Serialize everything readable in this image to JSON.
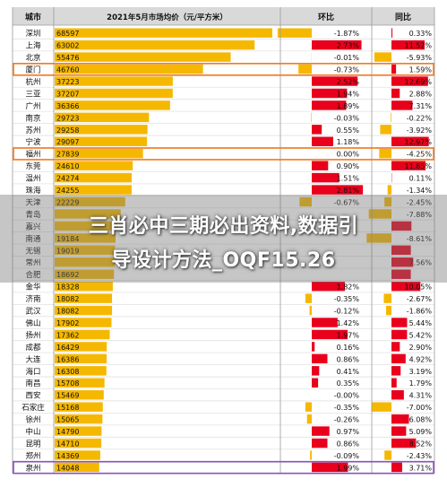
{
  "overlay": {
    "line1": "三肖必中三期必出资料,数据引",
    "line2": "导设计方法_OQF15.26"
  },
  "colors": {
    "bar_price": "#f5b800",
    "bar_positive": "#e8001c",
    "bar_negative": "#f5b800",
    "highlight_orange": "#f07820",
    "highlight_purple": "#8a4fc0",
    "header_bg": "#d9d9d9"
  },
  "chart_data": {
    "type": "table",
    "columns": [
      "城市",
      "2021年5月市场均价（元/平方米）",
      "环比",
      "同比"
    ],
    "ranges": {
      "price": [
        0,
        70000
      ],
      "mom_pct": [
        -3,
        3
      ],
      "yoy_pct": [
        -10,
        14
      ]
    },
    "highlighted_rows": [
      {
        "city": "厦门",
        "color": "orange"
      },
      {
        "city": "福州",
        "color": "orange"
      },
      {
        "city": "泉州",
        "color": "purple"
      }
    ],
    "rows": [
      {
        "city": "深圳",
        "price": 68597,
        "price_label": "68597",
        "mom": -1.87,
        "mom_label": "-1.87%",
        "yoy": 0.33,
        "yoy_label": "0.33%"
      },
      {
        "city": "上海",
        "price": 63002,
        "price_label": "63002",
        "mom": 2.73,
        "mom_label": "2.73%",
        "yoy": 11.52,
        "yoy_label": "11.52%"
      },
      {
        "city": "北京",
        "price": 55476,
        "price_label": "55476",
        "mom": -0.01,
        "mom_label": "-0.01%",
        "yoy": -5.93,
        "yoy_label": "-5.93%"
      },
      {
        "city": "厦门",
        "price": 46760,
        "price_label": "46760",
        "mom": -0.73,
        "mom_label": "-0.73%",
        "yoy": 1.59,
        "yoy_label": "1.59%"
      },
      {
        "city": "杭州",
        "price": 37223,
        "price_label": "37223",
        "mom": 2.52,
        "mom_label": "2.52%",
        "yoy": 12.69,
        "yoy_label": "12.69%"
      },
      {
        "city": "三亚",
        "price": 37207,
        "price_label": "37207",
        "mom": 1.94,
        "mom_label": "1.94%",
        "yoy": 2.88,
        "yoy_label": "2.88%"
      },
      {
        "city": "广州",
        "price": 36366,
        "price_label": "36366",
        "mom": 1.89,
        "mom_label": "1.89%",
        "yoy": 7.31,
        "yoy_label": "7.31%"
      },
      {
        "city": "南京",
        "price": 29723,
        "price_label": "29723",
        "mom": -0.03,
        "mom_label": "-0.03%",
        "yoy": -0.22,
        "yoy_label": "-0.22%"
      },
      {
        "city": "苏州",
        "price": 29258,
        "price_label": "29258",
        "mom": 0.55,
        "mom_label": "0.55%",
        "yoy": -3.92,
        "yoy_label": "-3.92%"
      },
      {
        "city": "宁波",
        "price": 29097,
        "price_label": "29097",
        "mom": 1.18,
        "mom_label": "1.18%",
        "yoy": 12.97,
        "yoy_label": "12.97%"
      },
      {
        "city": "福州",
        "price": 27839,
        "price_label": "27839",
        "mom": 0.0,
        "mom_label": "0.00%",
        "yoy": -4.25,
        "yoy_label": "-4.25%"
      },
      {
        "city": "东莞",
        "price": 24610,
        "price_label": "24610",
        "mom": 0.9,
        "mom_label": "0.90%",
        "yoy": 11.85,
        "yoy_label": "11.85%"
      },
      {
        "city": "温州",
        "price": 24274,
        "price_label": "24274",
        "mom": 1.51,
        "mom_label": "1.51%",
        "yoy": 0.11,
        "yoy_label": "0.11%"
      },
      {
        "city": "珠海",
        "price": 24255,
        "price_label": "24255",
        "mom": 2.81,
        "mom_label": "2.81%",
        "yoy": -1.34,
        "yoy_label": "-1.34%"
      },
      {
        "city": "天津",
        "price": 22229,
        "price_label": "22229",
        "mom": -0.67,
        "mom_label": "-0.67%",
        "yoy": -2.45,
        "yoy_label": "-2.45%"
      },
      {
        "city": "青岛",
        "price": 20812,
        "price_label": "",
        "mom": 0.0,
        "mom_label": "",
        "yoy": -7.88,
        "yoy_label": "-7.88%"
      },
      {
        "city": "嘉兴",
        "price": 20000,
        "price_label": "",
        "mom": 0.0,
        "mom_label": "",
        "yoy": 6.94,
        "yoy_label": ""
      },
      {
        "city": "南通",
        "price": 19184,
        "price_label": "19184",
        "mom": 0.0,
        "mom_label": "",
        "yoy": -8.61,
        "yoy_label": "-8.61%"
      },
      {
        "city": "无锡",
        "price": 19019,
        "price_label": "19019",
        "mom": 0.0,
        "mom_label": "",
        "yoy": 6.72,
        "yoy_label": ""
      },
      {
        "city": "常州",
        "price": 18900,
        "price_label": "",
        "mom": 0.0,
        "mom_label": "",
        "yoy": 7.56,
        "yoy_label": "7.56%"
      },
      {
        "city": "合肥",
        "price": 18692,
        "price_label": "18692",
        "mom": 0.0,
        "mom_label": "",
        "yoy": 6.71,
        "yoy_label": ""
      },
      {
        "city": "金华",
        "price": 18328,
        "price_label": "18328",
        "mom": 1.82,
        "mom_label": "1.82%",
        "yoy": 10.05,
        "yoy_label": "10.05%"
      },
      {
        "city": "济南",
        "price": 18082,
        "price_label": "18082",
        "mom": -0.35,
        "mom_label": "-0.35%",
        "yoy": -2.67,
        "yoy_label": "-2.67%"
      },
      {
        "city": "武汉",
        "price": 18082,
        "price_label": "18082",
        "mom": -0.12,
        "mom_label": "-0.12%",
        "yoy": -1.86,
        "yoy_label": "-1.86%"
      },
      {
        "city": "佛山",
        "price": 17902,
        "price_label": "17902",
        "mom": 1.42,
        "mom_label": "1.42%",
        "yoy": 5.44,
        "yoy_label": "5.44%"
      },
      {
        "city": "扬州",
        "price": 17362,
        "price_label": "17362",
        "mom": 1.97,
        "mom_label": "1.97%",
        "yoy": 5.42,
        "yoy_label": "5.42%"
      },
      {
        "city": "成都",
        "price": 16429,
        "price_label": "16429",
        "mom": 0.16,
        "mom_label": "0.16%",
        "yoy": 2.9,
        "yoy_label": "2.90%"
      },
      {
        "city": "大连",
        "price": 16386,
        "price_label": "16386",
        "mom": 0.86,
        "mom_label": "0.86%",
        "yoy": 4.92,
        "yoy_label": "4.92%"
      },
      {
        "city": "海口",
        "price": 16308,
        "price_label": "16308",
        "mom": 0.41,
        "mom_label": "0.41%",
        "yoy": 3.19,
        "yoy_label": "3.19%"
      },
      {
        "city": "南昌",
        "price": 15708,
        "price_label": "15708",
        "mom": 0.35,
        "mom_label": "0.35%",
        "yoy": 1.79,
        "yoy_label": "1.79%"
      },
      {
        "city": "西安",
        "price": 15469,
        "price_label": "15469",
        "mom": -0.0,
        "mom_label": "-0.00%",
        "yoy": 4.31,
        "yoy_label": "4.31%"
      },
      {
        "city": "石家庄",
        "price": 15168,
        "price_label": "15168",
        "mom": -0.35,
        "mom_label": "-0.35%",
        "yoy": -7.0,
        "yoy_label": "-7.00%"
      },
      {
        "city": "徐州",
        "price": 15065,
        "price_label": "15065",
        "mom": -0.26,
        "mom_label": "-0.26%",
        "yoy": 6.08,
        "yoy_label": "6.08%"
      },
      {
        "city": "中山",
        "price": 14790,
        "price_label": "14790",
        "mom": 0.97,
        "mom_label": "0.97%",
        "yoy": 5.09,
        "yoy_label": "5.09%"
      },
      {
        "city": "昆明",
        "price": 14710,
        "price_label": "14710",
        "mom": 0.86,
        "mom_label": "0.86%",
        "yoy": 8.52,
        "yoy_label": "8.52%"
      },
      {
        "city": "郑州",
        "price": 14369,
        "price_label": "14369",
        "mom": -0.09,
        "mom_label": "-0.09%",
        "yoy": -2.43,
        "yoy_label": "-2.43%"
      },
      {
        "city": "泉州",
        "price": 14048,
        "price_label": "14048",
        "mom": 1.99,
        "mom_label": "1.99%",
        "yoy": 3.71,
        "yoy_label": "3.71%"
      }
    ]
  }
}
